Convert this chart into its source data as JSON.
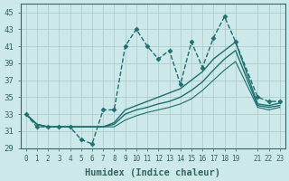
{
  "title": "",
  "xlabel": "Humidex (Indice chaleur)",
  "bg_color": "#cde8e8",
  "grid_color": "#b0cccc",
  "line_color": "#1a7070",
  "spine_color": "#336666",
  "xlim": [
    -0.5,
    23.5
  ],
  "ylim": [
    29,
    46
  ],
  "yticks": [
    29,
    31,
    33,
    35,
    37,
    39,
    41,
    43,
    45
  ],
  "xticks": [
    0,
    1,
    2,
    3,
    4,
    5,
    6,
    7,
    8,
    9,
    10,
    11,
    12,
    13,
    14,
    15,
    16,
    17,
    18,
    19,
    21,
    22,
    23
  ],
  "xtick_labels": [
    "0",
    "1",
    "2",
    "3",
    "4",
    "5",
    "6",
    "7",
    "8",
    "9",
    "10",
    "11",
    "12",
    "13",
    "14",
    "15",
    "16",
    "17",
    "18",
    "19",
    "21",
    "22",
    "23"
  ],
  "series": [
    {
      "x": [
        0,
        1,
        2,
        3,
        4,
        5,
        6,
        7,
        8,
        9,
        10,
        11,
        12,
        13,
        14,
        15,
        16,
        17,
        18,
        19,
        21,
        22,
        23
      ],
      "y": [
        33,
        31.5,
        31.5,
        31.5,
        31.5,
        30,
        29.5,
        33.5,
        33.5,
        41,
        43,
        41,
        39.5,
        40.5,
        36.5,
        41.5,
        38.5,
        42,
        44.5,
        41.5,
        35,
        34.5,
        34.5
      ],
      "marker": "D",
      "markersize": 2.5,
      "linestyle": "--",
      "linewidth": 1.0
    },
    {
      "x": [
        0,
        1,
        2,
        3,
        4,
        5,
        6,
        7,
        8,
        9,
        10,
        11,
        12,
        13,
        14,
        15,
        16,
        17,
        18,
        19,
        21,
        22,
        23
      ],
      "y": [
        33,
        31.8,
        31.5,
        31.5,
        31.5,
        31.5,
        31.5,
        31.5,
        32.0,
        33.5,
        34.0,
        34.5,
        35.0,
        35.5,
        36.0,
        37.0,
        38.0,
        39.5,
        40.5,
        41.5,
        34.2,
        34.0,
        34.3
      ],
      "marker": null,
      "markersize": 0,
      "linestyle": "-",
      "linewidth": 1.0
    },
    {
      "x": [
        0,
        1,
        2,
        3,
        4,
        5,
        6,
        7,
        8,
        9,
        10,
        11,
        12,
        13,
        14,
        15,
        16,
        17,
        18,
        19,
        21,
        22,
        23
      ],
      "y": [
        33,
        31.8,
        31.5,
        31.5,
        31.5,
        31.5,
        31.5,
        31.5,
        31.8,
        33.0,
        33.5,
        33.8,
        34.2,
        34.5,
        35.0,
        35.8,
        36.8,
        38.2,
        39.5,
        40.5,
        34.0,
        33.8,
        34.0
      ],
      "marker": null,
      "markersize": 0,
      "linestyle": "-",
      "linewidth": 1.0
    },
    {
      "x": [
        0,
        1,
        2,
        3,
        4,
        5,
        6,
        7,
        8,
        9,
        10,
        11,
        12,
        13,
        14,
        15,
        16,
        17,
        18,
        19,
        21,
        22,
        23
      ],
      "y": [
        33,
        31.8,
        31.5,
        31.5,
        31.5,
        31.5,
        31.5,
        31.5,
        31.5,
        32.3,
        32.8,
        33.2,
        33.5,
        33.8,
        34.2,
        34.8,
        35.8,
        37.0,
        38.2,
        39.2,
        33.8,
        33.5,
        33.8
      ],
      "marker": null,
      "markersize": 0,
      "linestyle": "-",
      "linewidth": 0.8
    }
  ]
}
